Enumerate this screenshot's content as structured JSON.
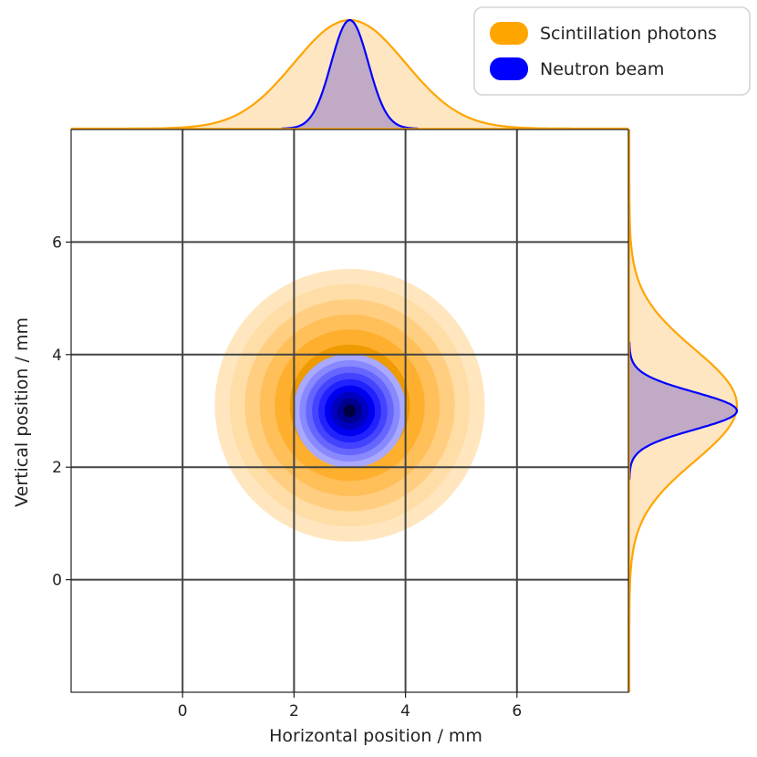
{
  "chart_data": {
    "type": "contour",
    "xlabel": "Horizontal position / mm",
    "ylabel": "Vertical position / mm",
    "xlim": [
      -2,
      8
    ],
    "ylim": [
      -2,
      8
    ],
    "x_ticks": [
      0,
      2,
      4,
      6
    ],
    "y_ticks": [
      0,
      2,
      4,
      6
    ],
    "grid": true,
    "legend_placement": "top-right",
    "series": [
      {
        "name": "Scintillation photons",
        "color": "#FFA500",
        "center": [
          3.0,
          3.1
        ],
        "sigma": [
          0.95,
          0.95
        ],
        "contour_levels": 8,
        "colors": [
          "#FFE6BF",
          "#FFDDA6",
          "#FFCE80",
          "#FFBF59",
          "#FFAF2E",
          "#EE9A00",
          "#C88200",
          "#9E6700",
          "#6E4800"
        ]
      },
      {
        "name": "Neutron beam",
        "color": "#0000FF",
        "center": [
          3.0,
          3.0
        ],
        "sigma": [
          0.35,
          0.35
        ],
        "contour_levels": 8,
        "colors": [
          "#A9A9FF",
          "#8888FF",
          "#6666FF",
          "#4444FF",
          "#2222FF",
          "#0000F0",
          "#0000C0",
          "#000090",
          "#000040"
        ]
      }
    ]
  }
}
